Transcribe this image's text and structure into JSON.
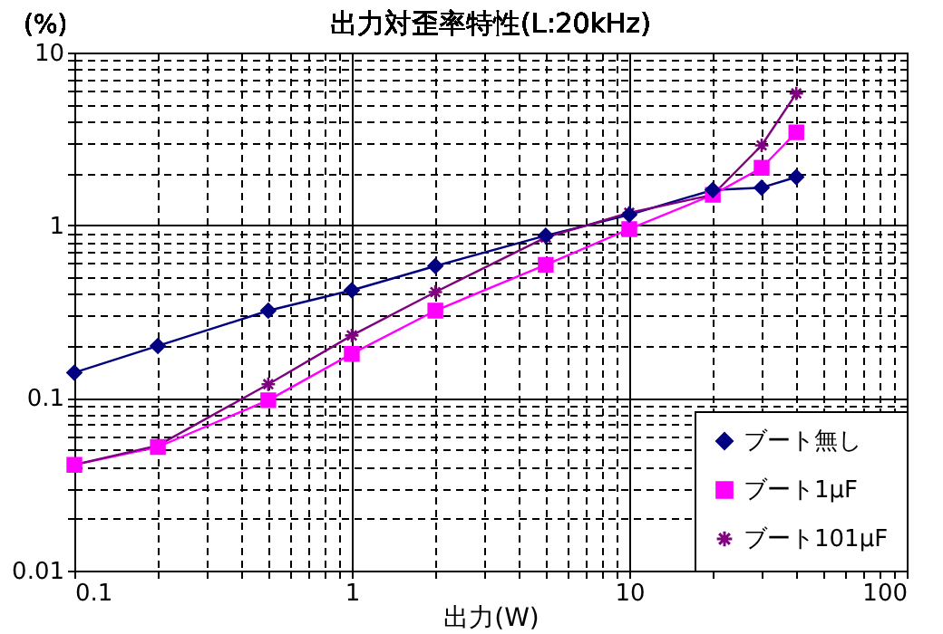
{
  "chart_data": {
    "type": "line",
    "title": "出力対歪率特性(L:20kHz)",
    "xlabel": "出力(W)",
    "ylabel": "(%)",
    "x": [
      0.1,
      0.2,
      0.5,
      1,
      2,
      5,
      10,
      20,
      30,
      40
    ],
    "series": [
      {
        "name": "ブート無し",
        "color": "#000080",
        "marker": "diamond",
        "values": [
          0.14,
          0.2,
          0.32,
          0.42,
          0.58,
          0.87,
          1.15,
          1.6,
          1.65,
          1.9
        ]
      },
      {
        "name": "ブート1μF",
        "color": "#ff00ff",
        "marker": "square",
        "values": [
          0.041,
          0.052,
          0.097,
          0.18,
          0.32,
          0.59,
          0.95,
          1.5,
          2.15,
          3.45
        ]
      },
      {
        "name": "ブート101μF",
        "color": "#800080",
        "marker": "cross",
        "values": [
          0.041,
          0.053,
          0.12,
          0.23,
          0.41,
          0.85,
          1.18,
          1.5,
          2.9,
          5.8
        ]
      }
    ],
    "log": "xy",
    "xlim": [
      0.1,
      100
    ],
    "ylim": [
      0.01,
      10
    ],
    "xticks": [
      0.1,
      {
        "value": 0.2,
        "label": null
      },
      {
        "value": 0.3,
        "label": null
      },
      {
        "value": 0.4,
        "label": null
      },
      {
        "value": 0.5,
        "label": null
      },
      {
        "value": 0.6,
        "label": null
      },
      {
        "value": 0.7,
        "label": null
      },
      {
        "value": 0.8,
        "label": null
      },
      {
        "value": 0.9,
        "label": null
      },
      1,
      {
        "value": 2,
        "label": null
      },
      {
        "value": 3,
        "label": null
      },
      {
        "value": 4,
        "label": null
      },
      {
        "value": 5,
        "label": null
      },
      {
        "value": 6,
        "label": null
      },
      {
        "value": 7,
        "label": null
      },
      {
        "value": 8,
        "label": null
      },
      {
        "value": 9,
        "label": null
      },
      10,
      {
        "value": 20,
        "label": null
      },
      {
        "value": 30,
        "label": null
      },
      {
        "value": 40,
        "label": null
      },
      {
        "value": 50,
        "label": null
      },
      {
        "value": 60,
        "label": null
      },
      {
        "value": 70,
        "label": null
      },
      {
        "value": 80,
        "label": null
      },
      {
        "value": 90,
        "label": null
      },
      100
    ],
    "yticks": [
      0.01,
      {
        "value": 0.02,
        "label": null
      },
      {
        "value": 0.03,
        "label": null
      },
      {
        "value": 0.04,
        "label": null
      },
      {
        "value": 0.05,
        "label": null
      },
      {
        "value": 0.06,
        "label": null
      },
      {
        "value": 0.07,
        "label": null
      },
      {
        "value": 0.08,
        "label": null
      },
      {
        "value": 0.09,
        "label": null
      },
      0.1,
      {
        "value": 0.2,
        "label": null
      },
      {
        "value": 0.3,
        "label": null
      },
      {
        "value": 0.4,
        "label": null
      },
      {
        "value": 0.5,
        "label": null
      },
      {
        "value": 0.6,
        "label": null
      },
      {
        "value": 0.7,
        "label": null
      },
      {
        "value": 0.8,
        "label": null
      },
      {
        "value": 0.9,
        "label": null
      },
      1,
      {
        "value": 2,
        "label": null
      },
      {
        "value": 3,
        "label": null
      },
      {
        "value": 4,
        "label": null
      },
      {
        "value": 5,
        "label": null
      },
      {
        "value": 6,
        "label": null
      },
      {
        "value": 7,
        "label": null
      },
      {
        "value": 8,
        "label": null
      },
      {
        "value": 9,
        "label": null
      },
      10
    ],
    "grid": true,
    "legend": "bottom right",
    "line_style": "solid"
  }
}
